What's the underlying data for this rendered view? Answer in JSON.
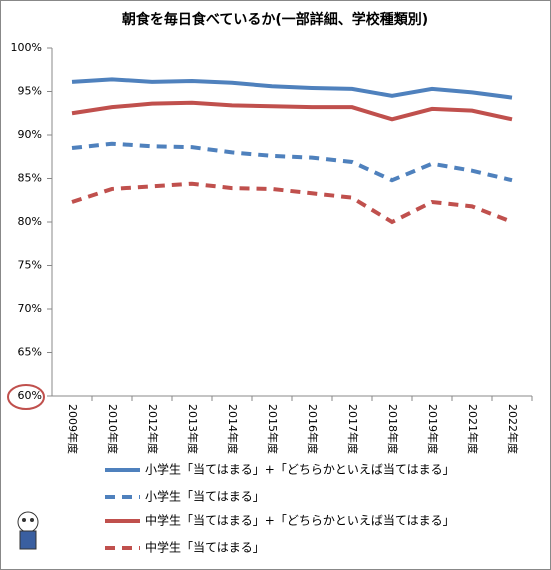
{
  "chart_data": {
    "type": "line",
    "title": "朝食を毎日食べているか(一部詳細、学校種類別)",
    "categories": [
      "2009年度",
      "2010年度",
      "2012年度",
      "2013年度",
      "2014年度",
      "2015年度",
      "2016年度",
      "2017年度",
      "2018年度",
      "2019年度",
      "2021年度",
      "2022年度"
    ],
    "series": [
      {
        "name": "小学生「当てはまる」+「どちらかといえば当てはまる」",
        "color": "#4f81bd",
        "dash": "solid",
        "values": [
          96.1,
          96.4,
          96.1,
          96.2,
          96.0,
          95.6,
          95.4,
          95.3,
          94.5,
          95.3,
          94.9,
          94.3
        ]
      },
      {
        "name": "小学生「当てはまる」",
        "color": "#4f81bd",
        "dash": "dashed",
        "values": [
          88.5,
          89.0,
          88.7,
          88.6,
          88.0,
          87.6,
          87.4,
          86.9,
          84.8,
          86.7,
          85.9,
          84.8
        ]
      },
      {
        "name": "中学生「当てはまる」+「どちらかといえば当てはまる」",
        "color": "#c0504d",
        "dash": "solid",
        "values": [
          92.5,
          93.2,
          93.6,
          93.7,
          93.4,
          93.3,
          93.2,
          93.2,
          91.8,
          93.0,
          92.8,
          91.8
        ]
      },
      {
        "name": "中学生「当てはまる」",
        "color": "#c0504d",
        "dash": "dashed",
        "values": [
          82.3,
          83.8,
          84.1,
          84.4,
          83.9,
          83.8,
          83.3,
          82.8,
          80.0,
          82.3,
          81.8,
          80.0
        ]
      }
    ],
    "ylim": [
      60,
      100
    ],
    "yticks": [
      {
        "value": 60,
        "label": "60%"
      },
      {
        "value": 65,
        "label": "65%"
      },
      {
        "value": 70,
        "label": "70%"
      },
      {
        "value": 75,
        "label": "75%"
      },
      {
        "value": 80,
        "label": "80%"
      },
      {
        "value": 85,
        "label": "85%"
      },
      {
        "value": 90,
        "label": "90%"
      },
      {
        "value": 95,
        "label": "95%"
      },
      {
        "value": 100,
        "label": "100%"
      }
    ],
    "grid": false
  }
}
